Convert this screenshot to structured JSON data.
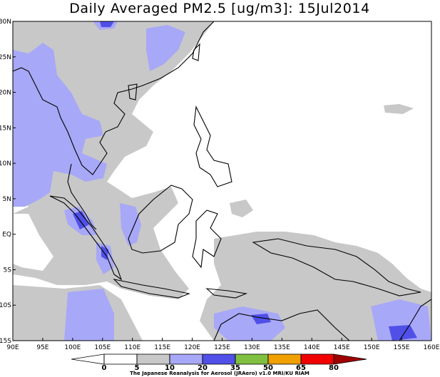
{
  "title": "Daily Averaged PM2.5 [ug/m3]: 15Jul2014",
  "map": {
    "lat_labels": [
      "30N",
      "25N",
      "20N",
      "15N",
      "10N",
      "5N",
      "EQ",
      "5S",
      "10S",
      "15S"
    ],
    "lon_labels": [
      "90E",
      "95E",
      "100E",
      "105E",
      "110E",
      "115E",
      "120E",
      "125E",
      "130E",
      "135E",
      "140E",
      "145E",
      "150E",
      "155E",
      "160E"
    ]
  },
  "colorbar": {
    "levels": [
      0,
      5,
      10,
      20,
      35,
      50,
      65,
      80
    ],
    "colors": [
      "#ffffff",
      "#c8c8c8",
      "#a8a8f8",
      "#5050e8",
      "#80c040",
      "#f0a000",
      "#f00000"
    ],
    "under_color": "#ffffff",
    "over_color": "#a00000"
  },
  "credit": "The Japanese Reanalysis for Aerosol (JRAero) v1.0 MRI/KU RIAM"
}
